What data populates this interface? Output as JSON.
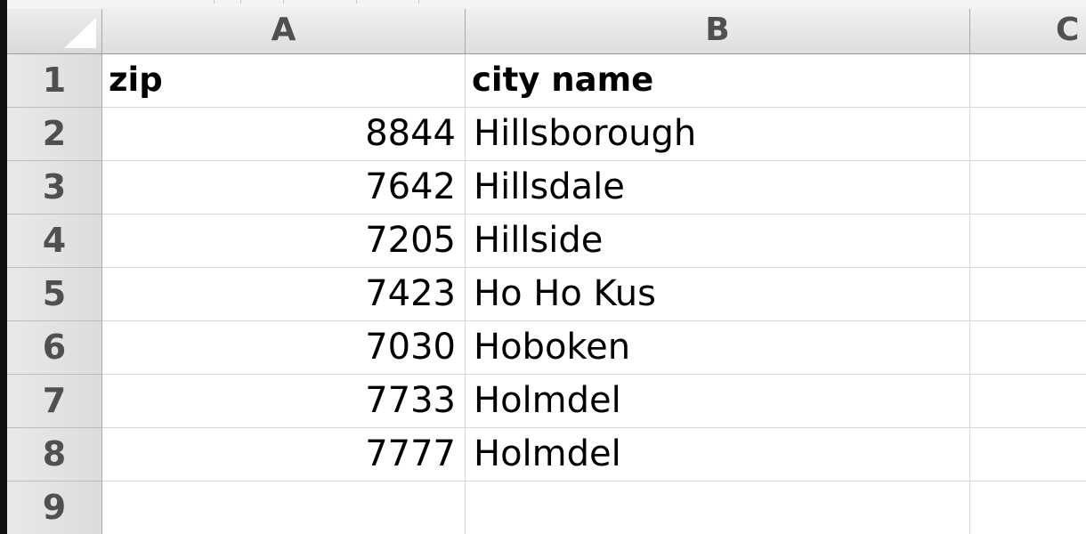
{
  "columns": [
    "A",
    "B",
    "C"
  ],
  "rows": [
    {
      "num": "1",
      "zip": "zip",
      "city": "city name"
    },
    {
      "num": "2",
      "zip": "8844",
      "city": "Hillsborough"
    },
    {
      "num": "3",
      "zip": "7642",
      "city": "Hillsdale"
    },
    {
      "num": "4",
      "zip": "7205",
      "city": "Hillside"
    },
    {
      "num": "5",
      "zip": "7423",
      "city": "Ho Ho Kus"
    },
    {
      "num": "6",
      "zip": "7030",
      "city": "Hoboken"
    },
    {
      "num": "7",
      "zip": "7733",
      "city": "Holmdel"
    },
    {
      "num": "8",
      "zip": "7777",
      "city": "Holmdel"
    },
    {
      "num": "9",
      "zip": "",
      "city": ""
    }
  ]
}
